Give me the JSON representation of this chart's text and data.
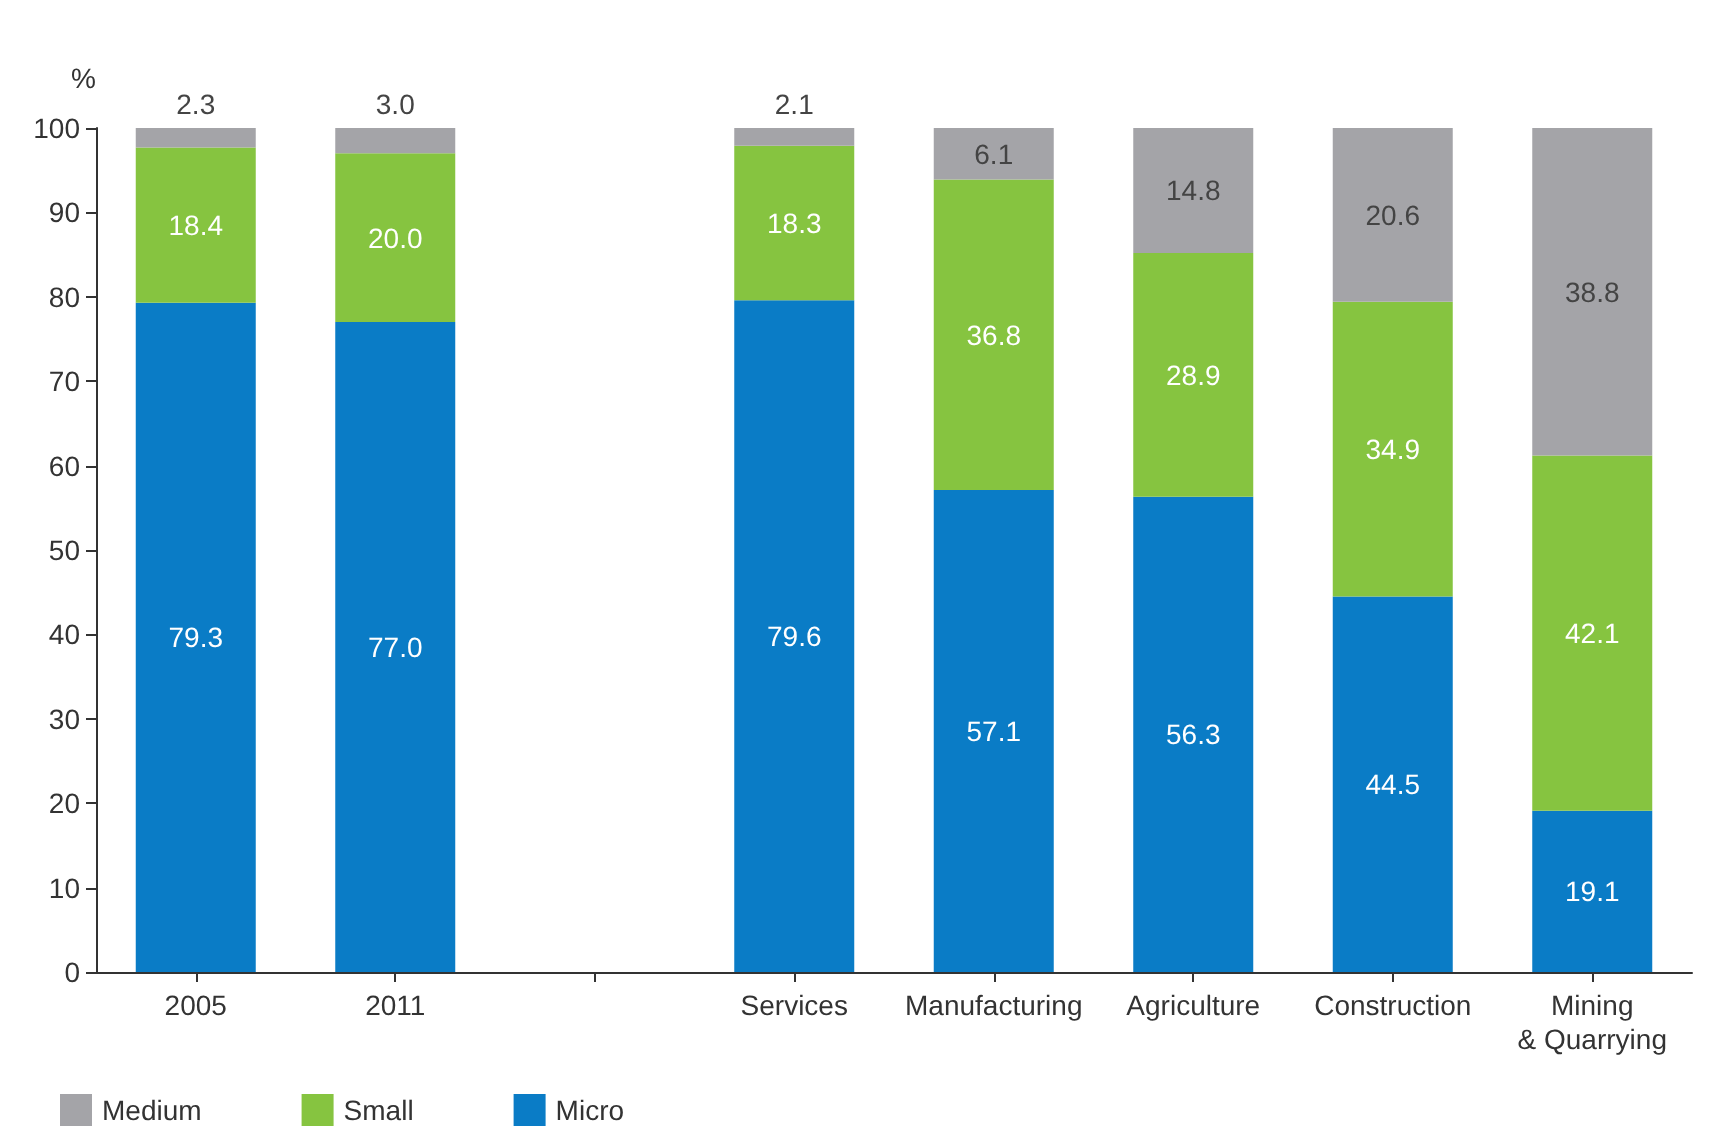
{
  "chart_data": {
    "type": "bar",
    "stacked": true,
    "ylabel": "%",
    "categories": [
      "2005",
      "2011",
      null,
      "Services",
      "Manufacturing",
      "Agriculture",
      "Construction",
      "Mining\n& Quarrying"
    ],
    "series": [
      {
        "name": "Micro",
        "color": "#0a7cc6",
        "values": [
          79.3,
          77.0,
          null,
          79.6,
          57.1,
          56.3,
          44.5,
          19.1
        ],
        "value_labels": [
          "79.3",
          "77.0",
          null,
          "79.6",
          "57.1",
          "56.3",
          "44.5",
          "19.1"
        ]
      },
      {
        "name": "Small",
        "color": "#86c440",
        "values": [
          18.4,
          20.0,
          null,
          18.3,
          36.8,
          28.9,
          34.9,
          42.1
        ],
        "value_labels": [
          "18.4",
          "20.0",
          null,
          "18.3",
          "36.8",
          "28.9",
          "34.9",
          "42.1"
        ]
      },
      {
        "name": "Medium",
        "color": "#a4a4a8",
        "values": [
          2.3,
          3.0,
          null,
          2.1,
          6.1,
          14.8,
          20.6,
          38.8
        ],
        "value_labels": [
          "2.3",
          "3.0",
          null,
          "2.1",
          "6.1",
          "14.8",
          "20.6",
          "38.8"
        ]
      }
    ],
    "ylim": [
      0,
      100
    ],
    "yticks": [
      0,
      10,
      20,
      30,
      40,
      50,
      60,
      70,
      80,
      90,
      100
    ],
    "grid": false,
    "legend": "bottom left"
  }
}
